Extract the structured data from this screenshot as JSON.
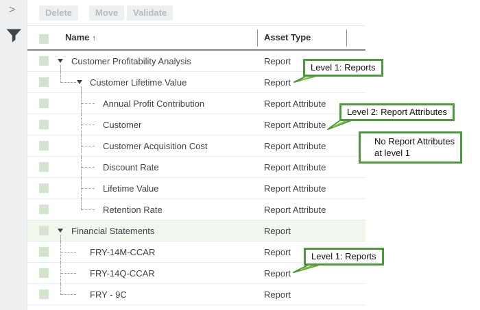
{
  "colors": {
    "callout_border_green": "#4c9a3d",
    "callout_tail_green": "#8dc63f",
    "checkbox_green": "#d3e4cf",
    "highlight_row_green": "#f1f7ed",
    "sidebar_gray": "#edeff0",
    "filter_icon_dark": "#3f464b"
  },
  "sidebar": {
    "expand_icon": "chevron-right",
    "expand_glyph": ">",
    "filter_icon": "funnel"
  },
  "toolbar": {
    "buttons": [
      "Delete",
      "Move",
      "Validate"
    ]
  },
  "table": {
    "columns": [
      {
        "label": "Name",
        "sorted": "ascending"
      },
      {
        "label": "Asset Type"
      }
    ],
    "sort_arrow": "↑",
    "rows": [
      {
        "name": "Customer Profitability Analysis",
        "type": "Report",
        "level": 0,
        "expander": true,
        "highlighted": false,
        "lines": [
          "a-bottom"
        ]
      },
      {
        "name": "Customer Lifetime Value",
        "type": "Report",
        "level": 1,
        "expander": true,
        "highlighted": false,
        "lines": [
          "a-top",
          "a-elbow",
          "b-bottom"
        ]
      },
      {
        "name": "Annual Profit Contribution",
        "type": "Report Attribute",
        "level": 2,
        "expander": false,
        "highlighted": false,
        "lines": [
          "b-full",
          "b-elbow"
        ]
      },
      {
        "name": "Customer",
        "type": "Report Attribute",
        "level": 2,
        "expander": false,
        "highlighted": false,
        "lines": [
          "b-full",
          "b-elbow"
        ]
      },
      {
        "name": "Customer Acquisition Cost",
        "type": "Report Attribute",
        "level": 2,
        "expander": false,
        "highlighted": false,
        "lines": [
          "b-full",
          "b-elbow"
        ]
      },
      {
        "name": "Discount Rate",
        "type": "Report Attribute",
        "level": 2,
        "expander": false,
        "highlighted": false,
        "lines": [
          "b-full",
          "b-elbow"
        ]
      },
      {
        "name": "Lifetime Value",
        "type": "Report Attribute",
        "level": 2,
        "expander": false,
        "highlighted": false,
        "lines": [
          "b-full",
          "b-elbow"
        ]
      },
      {
        "name": "Retention Rate",
        "type": "Report Attribute",
        "level": 2,
        "expander": false,
        "highlighted": false,
        "lines": [
          "b-top",
          "b-elbow"
        ]
      },
      {
        "name": "Financial Statements",
        "type": "Report",
        "level": 0,
        "expander": true,
        "highlighted": true,
        "lines": [
          "a-bottom"
        ]
      },
      {
        "name": "FRY-14M-CCAR",
        "type": "Report",
        "level": 1,
        "expander": false,
        "highlighted": false,
        "lines": [
          "a-full",
          "a-elbow"
        ]
      },
      {
        "name": "FRY-14Q-CCAR",
        "type": "Report",
        "level": 1,
        "expander": false,
        "highlighted": false,
        "lines": [
          "a-full",
          "a-elbow"
        ]
      },
      {
        "name": "FRY - 9C",
        "type": "Report",
        "level": 1,
        "expander": false,
        "highlighted": false,
        "lines": [
          "a-top",
          "a-elbow"
        ]
      }
    ]
  },
  "callouts": [
    {
      "text": "Level 1: Reports"
    },
    {
      "text": "Level 2: Report Attributes"
    },
    {
      "text": "No Report Attributes",
      "text2": "at level 1"
    },
    {
      "text": "Level 1: Reports"
    }
  ]
}
